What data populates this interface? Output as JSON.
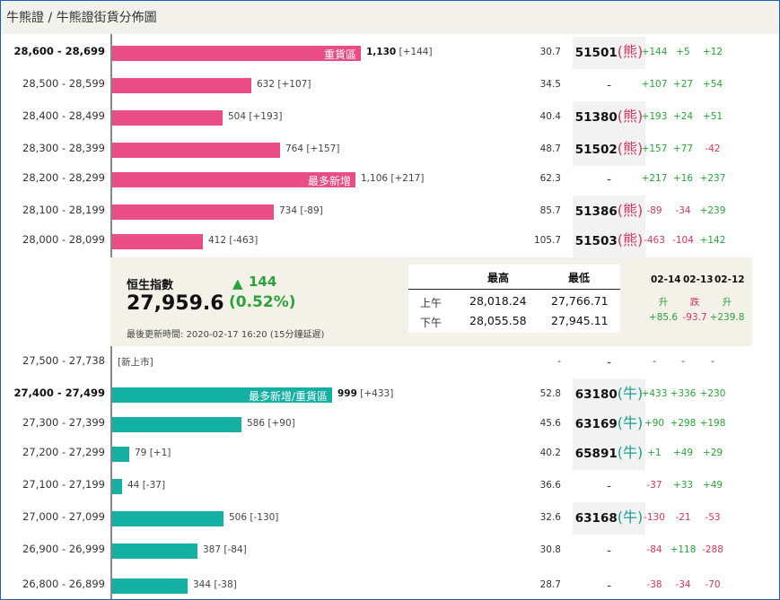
{
  "header": {
    "title": "牛熊證 / 牛熊證街貨分佈圖"
  },
  "colors": {
    "bear_bar": "#e94d83",
    "bull_bar": "#14b0a4",
    "positive": "#29a33a",
    "negative": "#d3365e"
  },
  "bear_rows": [
    {
      "range": "28,600 - 28,699",
      "bold": true,
      "bar_label": "重貨區",
      "count": "1,130",
      "count_change": "[+144]",
      "pct": "30.7",
      "code": "51501",
      "type": "熊",
      "chg": [
        "+144",
        "+5",
        "+12"
      ]
    },
    {
      "range": "28,500 - 28,599",
      "bold": false,
      "bar_label": "",
      "count": "632",
      "count_change": "[+107]",
      "pct": "34.5",
      "code": "-",
      "type": "",
      "chg": [
        "+107",
        "+27",
        "+54"
      ]
    },
    {
      "range": "28,400 - 28,499",
      "bold": false,
      "bar_label": "",
      "count": "504",
      "count_change": "[+193]",
      "pct": "40.4",
      "code": "51380",
      "type": "熊",
      "chg": [
        "+193",
        "+24",
        "+51"
      ]
    },
    {
      "range": "28,300 - 28,399",
      "bold": false,
      "bar_label": "",
      "count": "764",
      "count_change": "[+157]",
      "pct": "48.7",
      "code": "51502",
      "type": "熊",
      "chg": [
        "+157",
        "+77",
        "-42"
      ]
    },
    {
      "range": "28,200 - 28,299",
      "bold": false,
      "bar_label": "最多新增",
      "count": "1,106",
      "count_change": "[+217]",
      "pct": "62.3",
      "code": "-",
      "type": "",
      "chg": [
        "+217",
        "+16",
        "+237"
      ]
    },
    {
      "range": "28,100 - 28,199",
      "bold": false,
      "bar_label": "",
      "count": "734",
      "count_change": "[-89]",
      "pct": "85.7",
      "code": "51386",
      "type": "熊",
      "chg": [
        "-89",
        "-34",
        "+239"
      ]
    },
    {
      "range": "28,000 - 28,099",
      "bold": false,
      "bar_label": "",
      "count": "412",
      "count_change": "[-463]",
      "pct": "105.7",
      "code": "51503",
      "type": "熊",
      "chg": [
        "-463",
        "-104",
        "+142"
      ]
    }
  ],
  "summary": {
    "index_name": "恒生指數",
    "index_value": "27,959.6",
    "arrow": "▲",
    "change": "144",
    "change_pct": "(0.52%)",
    "updated": "最後更新時間: 2020-02-17 16:20 (15分鐘延遲)",
    "high_low": {
      "headers": [
        "最高",
        "最低"
      ],
      "rows": [
        {
          "label": "上午",
          "high": "28,018.24",
          "low": "27,766.71"
        },
        {
          "label": "下午",
          "high": "28,055.58",
          "low": "27,945.11"
        }
      ]
    },
    "days": [
      {
        "date": "02-14",
        "direction": "升",
        "change": "+85.6"
      },
      {
        "date": "02-13",
        "direction": "跌",
        "change": "-93.7"
      },
      {
        "date": "02-12",
        "direction": "升",
        "change": "+239.8"
      }
    ]
  },
  "new_listing_row": {
    "range": "27,500 - 27,738",
    "label": "[新上市]",
    "pct": "-",
    "code": "-",
    "chg": [
      "-",
      "-",
      "-"
    ]
  },
  "bull_rows": [
    {
      "range": "27,400 - 27,499",
      "bold": true,
      "bar_label": "最多新增/重貨區",
      "count": "999",
      "count_change": "[+433]",
      "pct": "52.8",
      "code": "63180",
      "type": "牛",
      "chg": [
        "+433",
        "+336",
        "+230"
      ]
    },
    {
      "range": "27,300 - 27,399",
      "bold": false,
      "bar_label": "",
      "count": "586",
      "count_change": "[+90]",
      "pct": "45.6",
      "code": "63169",
      "type": "牛",
      "chg": [
        "+90",
        "+298",
        "+198"
      ]
    },
    {
      "range": "27,200 - 27,299",
      "bold": false,
      "bar_label": "",
      "count": "79",
      "count_change": "[+1]",
      "pct": "40.2",
      "code": "65891",
      "type": "牛",
      "chg": [
        "+1",
        "+49",
        "+29"
      ]
    },
    {
      "range": "27,100 - 27,199",
      "bold": false,
      "bar_label": "",
      "count": "44",
      "count_change": "[-37]",
      "pct": "36.6",
      "code": "-",
      "type": "",
      "chg": [
        "-37",
        "+33",
        "+49"
      ]
    },
    {
      "range": "27,000 - 27,099",
      "bold": false,
      "bar_label": "",
      "count": "506",
      "count_change": "[-130]",
      "pct": "32.6",
      "code": "63168",
      "type": "牛",
      "chg": [
        "-130",
        "-21",
        "-53"
      ]
    },
    {
      "range": "26,900 - 26,999",
      "bold": false,
      "bar_label": "",
      "count": "387",
      "count_change": "[-84]",
      "pct": "30.8",
      "code": "-",
      "type": "",
      "chg": [
        "-84",
        "+118",
        "-288"
      ]
    },
    {
      "range": "26,800 - 26,899",
      "bold": false,
      "bar_label": "",
      "count": "344",
      "count_change": "[-38]",
      "pct": "28.7",
      "code": "-",
      "type": "",
      "chg": [
        "-38",
        "-34",
        "-70"
      ]
    }
  ]
}
